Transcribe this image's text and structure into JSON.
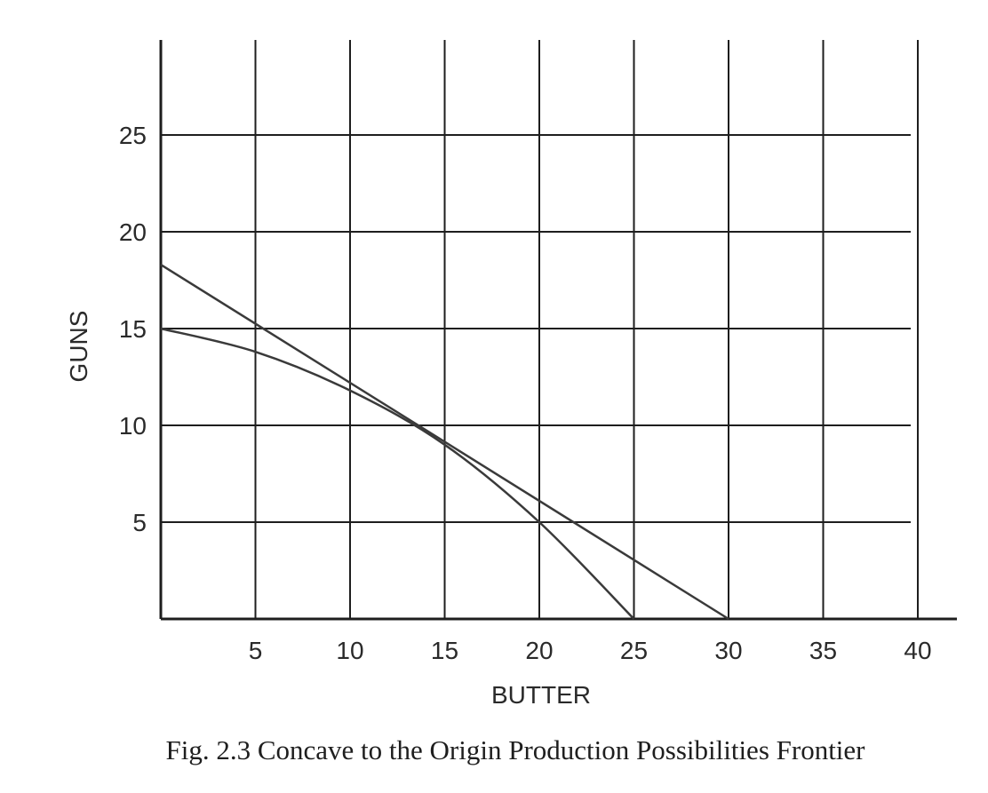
{
  "caption": "Fig. 2.3  Concave to the Origin Production Possibilities Frontier",
  "chart_data": {
    "type": "line",
    "title": "",
    "xlabel": "BUTTER",
    "ylabel": "GUNS",
    "xlim": [
      0,
      40
    ],
    "ylim": [
      0,
      25
    ],
    "xticks": [
      5,
      10,
      15,
      20,
      25,
      30,
      35,
      40
    ],
    "yticks": [
      5,
      10,
      15,
      20,
      25
    ],
    "grid": true,
    "series": [
      {
        "points": [
          [
            0,
            15
          ],
          [
            5,
            13.8
          ],
          [
            10,
            11.8
          ],
          [
            15,
            9
          ],
          [
            20,
            5
          ],
          [
            25,
            0
          ]
        ]
      },
      {
        "points": [
          [
            0,
            18.3
          ],
          [
            30,
            0
          ]
        ]
      }
    ]
  }
}
